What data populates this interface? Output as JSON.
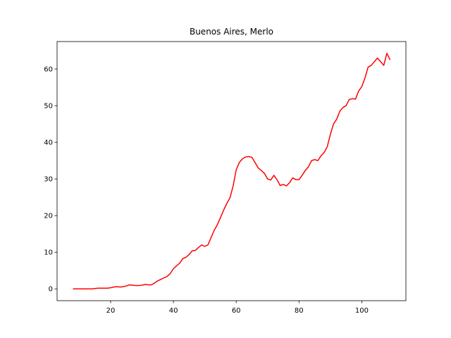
{
  "chart_data": {
    "type": "line",
    "title": "Buenos Aires, Merlo",
    "x": [
      8,
      9,
      10,
      11,
      12,
      13,
      14,
      15,
      16,
      17,
      18,
      19,
      20,
      21,
      22,
      23,
      24,
      25,
      26,
      27,
      28,
      29,
      30,
      31,
      32,
      33,
      34,
      35,
      36,
      37,
      38,
      39,
      40,
      41,
      42,
      43,
      44,
      45,
      46,
      47,
      48,
      49,
      50,
      51,
      52,
      53,
      54,
      55,
      56,
      57,
      58,
      59,
      60,
      61,
      62,
      63,
      64,
      65,
      66,
      67,
      68,
      69,
      70,
      71,
      72,
      73,
      74,
      75,
      76,
      77,
      78,
      79,
      80,
      81,
      82,
      83,
      84,
      85,
      86,
      87,
      88,
      89,
      90,
      91,
      92,
      93,
      94,
      95,
      96,
      97,
      98,
      99,
      100,
      101,
      102,
      103,
      104,
      105,
      106,
      107,
      108,
      109
    ],
    "series": [
      {
        "name": "Merlo",
        "color": "#ff0000",
        "values": [
          0,
          0,
          0,
          0,
          0,
          0,
          0,
          0.1,
          0.2,
          0.2,
          0.2,
          0.2,
          0.3,
          0.5,
          0.6,
          0.5,
          0.6,
          0.8,
          1.1,
          1.0,
          0.9,
          0.9,
          1.0,
          1.2,
          1.1,
          1.1,
          1.6,
          2.2,
          2.6,
          3.0,
          3.4,
          4.2,
          5.5,
          6.3,
          7.0,
          8.3,
          8.6,
          9.4,
          10.4,
          10.5,
          11.3,
          12.0,
          11.6,
          12.0,
          14.0,
          16.0,
          17.5,
          19.5,
          21.5,
          23.3,
          24.8,
          28.0,
          32.5,
          34.5,
          35.5,
          36.0,
          36.1,
          35.9,
          34.5,
          33.0,
          32.3,
          31.5,
          30.0,
          29.7,
          31.0,
          29.8,
          28.2,
          28.5,
          28.1,
          29.0,
          30.3,
          29.8,
          29.8,
          31.0,
          32.3,
          33.3,
          35.0,
          35.3,
          35.0,
          36.3,
          37.2,
          38.8,
          42.2,
          45.0,
          46.3,
          48.5,
          49.5,
          50.0,
          51.7,
          51.9,
          51.8,
          54.0,
          55.2,
          57.5,
          60.5,
          61.0,
          62.0,
          63.0,
          62.0,
          61.0,
          64.3,
          62.5
        ]
      }
    ],
    "xlim": [
      2.95,
      114.05
    ],
    "ylim": [
      -3.22,
      67.5
    ],
    "xticks": [
      20,
      40,
      60,
      80,
      100
    ],
    "yticks": [
      0,
      10,
      20,
      30,
      40,
      50,
      60
    ],
    "grid": false
  }
}
